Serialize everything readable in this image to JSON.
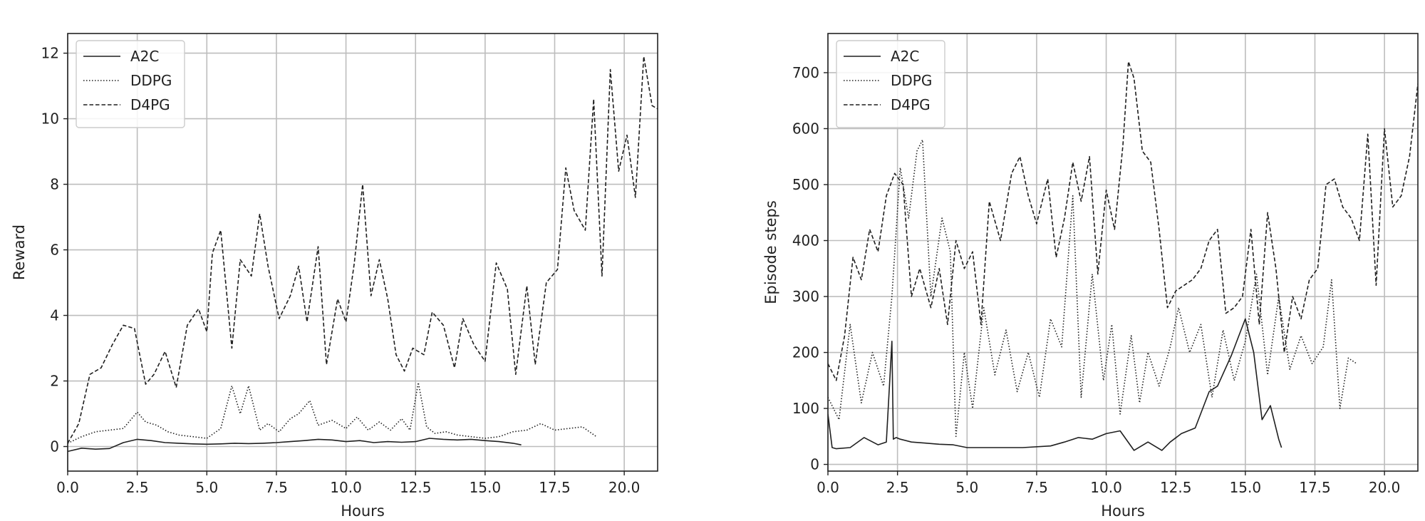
{
  "chart_data": [
    {
      "type": "line",
      "title": "",
      "xlabel": "Hours",
      "ylabel": "Reward",
      "xlim": [
        0,
        21.2
      ],
      "ylim": [
        -0.75,
        12.6
      ],
      "xticks": [
        0.0,
        2.5,
        5.0,
        7.5,
        10.0,
        12.5,
        15.0,
        17.5,
        20.0
      ],
      "xtick_labels": [
        "0.0",
        "2.5",
        "5.0",
        "7.5",
        "10.0",
        "12.5",
        "15.0",
        "17.5",
        "20.0"
      ],
      "yticks": [
        0,
        2,
        4,
        6,
        8,
        10,
        12
      ],
      "ytick_labels": [
        "0",
        "2",
        "4",
        "6",
        "8",
        "10",
        "12"
      ],
      "grid": true,
      "legend": "top-left",
      "series": [
        {
          "name": "A2C",
          "dash": "solid",
          "x": [
            0,
            0.5,
            1.0,
            1.5,
            2.0,
            2.5,
            3.0,
            3.5,
            4.0,
            4.5,
            5.0,
            5.5,
            6.0,
            6.5,
            7.0,
            7.5,
            8.0,
            8.5,
            9.0,
            9.5,
            10.0,
            10.5,
            11.0,
            11.5,
            12.0,
            12.5,
            13.0,
            13.5,
            14.0,
            14.5,
            15.0,
            15.5,
            16.0,
            16.3
          ],
          "y": [
            -0.15,
            -0.05,
            -0.08,
            -0.06,
            0.12,
            0.22,
            0.18,
            0.12,
            0.1,
            0.08,
            0.07,
            0.08,
            0.1,
            0.09,
            0.1,
            0.12,
            0.15,
            0.18,
            0.22,
            0.2,
            0.15,
            0.18,
            0.12,
            0.15,
            0.13,
            0.15,
            0.25,
            0.22,
            0.2,
            0.22,
            0.18,
            0.15,
            0.1,
            0.05
          ]
        },
        {
          "name": "DDPG",
          "dash": "dotted",
          "x": [
            0,
            0.5,
            1.0,
            1.5,
            2.0,
            2.5,
            2.8,
            3.2,
            3.6,
            4.0,
            4.5,
            5.0,
            5.5,
            5.9,
            6.2,
            6.5,
            6.9,
            7.2,
            7.6,
            8.0,
            8.3,
            8.7,
            9.0,
            9.5,
            10.0,
            10.4,
            10.8,
            11.2,
            11.6,
            12.0,
            12.3,
            12.6,
            12.9,
            13.2,
            13.6,
            14.0,
            14.5,
            15.0,
            15.5,
            16.0,
            16.5,
            17.0,
            17.5,
            18.0,
            18.5,
            19.0
          ],
          "y": [
            0.1,
            0.3,
            0.45,
            0.5,
            0.55,
            1.05,
            0.75,
            0.65,
            0.45,
            0.35,
            0.3,
            0.25,
            0.55,
            1.85,
            1.0,
            1.85,
            0.5,
            0.7,
            0.45,
            0.85,
            1.0,
            1.4,
            0.65,
            0.8,
            0.55,
            0.9,
            0.5,
            0.75,
            0.5,
            0.85,
            0.5,
            1.95,
            0.6,
            0.4,
            0.45,
            0.35,
            0.3,
            0.25,
            0.3,
            0.45,
            0.5,
            0.7,
            0.5,
            0.55,
            0.6,
            0.3
          ]
        },
        {
          "name": "D4PG",
          "dash": "dashed",
          "x": [
            0,
            0.4,
            0.8,
            1.2,
            1.6,
            2.0,
            2.4,
            2.8,
            3.1,
            3.5,
            3.9,
            4.3,
            4.7,
            5.0,
            5.2,
            5.5,
            5.9,
            6.2,
            6.6,
            6.9,
            7.2,
            7.6,
            8.0,
            8.3,
            8.6,
            9.0,
            9.3,
            9.7,
            10.0,
            10.3,
            10.6,
            10.9,
            11.2,
            11.5,
            11.8,
            12.1,
            12.4,
            12.8,
            13.1,
            13.5,
            13.9,
            14.2,
            14.6,
            15.0,
            15.4,
            15.8,
            16.1,
            16.5,
            16.8,
            17.2,
            17.6,
            17.9,
            18.2,
            18.6,
            18.9,
            19.2,
            19.5,
            19.8,
            20.1,
            20.4,
            20.7,
            21.0,
            21.2
          ],
          "y": [
            0.1,
            0.7,
            2.2,
            2.4,
            3.1,
            3.7,
            3.6,
            1.9,
            2.2,
            2.9,
            1.8,
            3.7,
            4.2,
            3.5,
            5.9,
            6.6,
            3.0,
            5.7,
            5.2,
            7.1,
            5.5,
            3.9,
            4.6,
            5.5,
            3.8,
            6.1,
            2.5,
            4.5,
            3.8,
            5.6,
            8.0,
            4.6,
            5.7,
            4.5,
            2.8,
            2.3,
            3.0,
            2.8,
            4.1,
            3.7,
            2.4,
            3.9,
            3.1,
            2.6,
            5.6,
            4.8,
            2.2,
            4.9,
            2.5,
            5.0,
            5.4,
            8.5,
            7.2,
            6.6,
            10.6,
            5.2,
            11.5,
            8.4,
            9.5,
            7.6,
            11.9,
            10.4,
            10.3
          ]
        }
      ]
    },
    {
      "type": "line",
      "title": "",
      "xlabel": "Hours",
      "ylabel": "Episode steps",
      "xlim": [
        0,
        21.2
      ],
      "ylim": [
        -12,
        770
      ],
      "xticks": [
        0.0,
        2.5,
        5.0,
        7.5,
        10.0,
        12.5,
        15.0,
        17.5,
        20.0
      ],
      "xtick_labels": [
        "0.0",
        "2.5",
        "5.0",
        "7.5",
        "10.0",
        "12.5",
        "15.0",
        "17.5",
        "20.0"
      ],
      "yticks": [
        0,
        100,
        200,
        300,
        400,
        500,
        600,
        700
      ],
      "ytick_labels": [
        "0",
        "100",
        "200",
        "300",
        "400",
        "500",
        "600",
        "700"
      ],
      "grid": true,
      "legend": "top-left",
      "series": [
        {
          "name": "A2C",
          "dash": "solid",
          "x": [
            0,
            0.15,
            0.3,
            0.8,
            1.3,
            1.8,
            2.1,
            2.3,
            2.35,
            2.45,
            2.6,
            3.0,
            3.5,
            4.0,
            4.5,
            5.0,
            6.0,
            7.0,
            8.0,
            8.5,
            9.0,
            9.5,
            10.0,
            10.5,
            11.0,
            11.5,
            12.0,
            12.3,
            12.7,
            13.2,
            13.7,
            14.0,
            14.5,
            15.0,
            15.3,
            15.6,
            15.9,
            16.2,
            16.3
          ],
          "y": [
            90,
            30,
            28,
            30,
            48,
            35,
            40,
            220,
            45,
            48,
            45,
            40,
            38,
            36,
            35,
            30,
            30,
            30,
            33,
            40,
            48,
            45,
            55,
            60,
            25,
            40,
            25,
            40,
            55,
            65,
            130,
            140,
            195,
            260,
            200,
            80,
            105,
            45,
            30
          ]
        },
        {
          "name": "DDPG",
          "dash": "dotted",
          "x": [
            0,
            0.4,
            0.8,
            1.2,
            1.6,
            2.0,
            2.3,
            2.6,
            2.9,
            3.2,
            3.4,
            3.7,
            4.1,
            4.4,
            4.6,
            4.9,
            5.2,
            5.6,
            6.0,
            6.4,
            6.8,
            7.2,
            7.6,
            8.0,
            8.4,
            8.8,
            9.1,
            9.5,
            9.9,
            10.2,
            10.5,
            10.9,
            11.2,
            11.5,
            11.9,
            12.3,
            12.6,
            13.0,
            13.4,
            13.8,
            14.2,
            14.6,
            15.0,
            15.4,
            15.8,
            16.2,
            16.6,
            17.0,
            17.4,
            17.8,
            18.1,
            18.4,
            18.7,
            19.0
          ],
          "y": [
            120,
            80,
            250,
            110,
            200,
            140,
            300,
            530,
            440,
            560,
            580,
            300,
            440,
            380,
            50,
            200,
            100,
            280,
            160,
            240,
            130,
            200,
            120,
            260,
            210,
            480,
            120,
            340,
            150,
            250,
            90,
            230,
            110,
            200,
            140,
            210,
            280,
            200,
            250,
            120,
            240,
            150,
            220,
            340,
            160,
            300,
            170,
            230,
            180,
            210,
            330,
            100,
            190,
            180
          ]
        },
        {
          "name": "D4PG",
          "dash": "dashed",
          "x": [
            0,
            0.3,
            0.6,
            0.9,
            1.2,
            1.5,
            1.8,
            2.1,
            2.4,
            2.7,
            3.0,
            3.3,
            3.7,
            4.0,
            4.3,
            4.6,
            4.9,
            5.2,
            5.5,
            5.8,
            6.2,
            6.6,
            6.9,
            7.2,
            7.5,
            7.9,
            8.2,
            8.5,
            8.8,
            9.1,
            9.4,
            9.7,
            10.0,
            10.3,
            10.6,
            10.8,
            11.0,
            11.3,
            11.6,
            11.9,
            12.2,
            12.5,
            12.8,
            13.1,
            13.4,
            13.7,
            14.0,
            14.3,
            14.6,
            14.9,
            15.2,
            15.5,
            15.8,
            16.1,
            16.4,
            16.7,
            17.0,
            17.3,
            17.6,
            17.9,
            18.2,
            18.5,
            18.8,
            19.1,
            19.4,
            19.7,
            20.0,
            20.3,
            20.6,
            20.9,
            21.2
          ],
          "y": [
            180,
            150,
            230,
            370,
            330,
            420,
            380,
            480,
            520,
            500,
            300,
            350,
            280,
            350,
            250,
            400,
            350,
            380,
            250,
            470,
            400,
            520,
            550,
            480,
            430,
            510,
            370,
            440,
            540,
            470,
            550,
            340,
            490,
            420,
            570,
            720,
            690,
            560,
            540,
            420,
            280,
            310,
            320,
            330,
            350,
            400,
            420,
            270,
            280,
            300,
            420,
            250,
            450,
            350,
            200,
            300,
            260,
            330,
            350,
            500,
            510,
            460,
            440,
            400,
            590,
            320,
            600,
            460,
            480,
            550,
            680
          ]
        }
      ]
    }
  ]
}
